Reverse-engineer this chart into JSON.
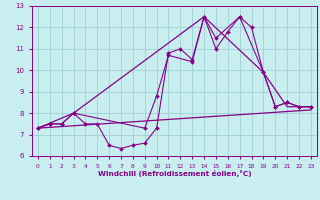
{
  "background_color": "#c8eef0",
  "grid_color": "#a0d0d8",
  "line_color": "#880088",
  "xlim": [
    -0.5,
    23.5
  ],
  "ylim": [
    6,
    13
  ],
  "xticks": [
    0,
    1,
    2,
    3,
    4,
    5,
    6,
    7,
    8,
    9,
    10,
    11,
    12,
    13,
    14,
    15,
    16,
    17,
    18,
    19,
    20,
    21,
    22,
    23
  ],
  "yticks": [
    6,
    7,
    8,
    9,
    10,
    11,
    12,
    13
  ],
  "xlabel": "Windchill (Refroidissement éolien,°C)",
  "series1_x": [
    0,
    1,
    2,
    3,
    4,
    5,
    6,
    7,
    8,
    9,
    10,
    11,
    12,
    13,
    14,
    15,
    16,
    17,
    18,
    19,
    20,
    21,
    22,
    23
  ],
  "series1_y": [
    7.3,
    7.5,
    7.5,
    8.0,
    7.5,
    7.5,
    6.5,
    6.35,
    6.5,
    6.6,
    7.3,
    10.8,
    11.0,
    10.5,
    12.5,
    11.0,
    11.8,
    12.5,
    12.0,
    9.9,
    8.3,
    8.5,
    8.3,
    8.3
  ],
  "series2_x": [
    0,
    1,
    2,
    3,
    9,
    10,
    11,
    13,
    14,
    15,
    17,
    19,
    20,
    21,
    22,
    23
  ],
  "series2_y": [
    7.3,
    7.5,
    7.5,
    8.0,
    7.3,
    8.8,
    10.7,
    10.4,
    12.5,
    11.5,
    12.5,
    9.9,
    8.3,
    8.5,
    8.3,
    8.3
  ],
  "series3_x": [
    0,
    23
  ],
  "series3_y": [
    7.3,
    8.15
  ],
  "series4_x": [
    0,
    3,
    14,
    19,
    21,
    23
  ],
  "series4_y": [
    7.3,
    8.0,
    12.5,
    9.9,
    8.3,
    8.3
  ]
}
